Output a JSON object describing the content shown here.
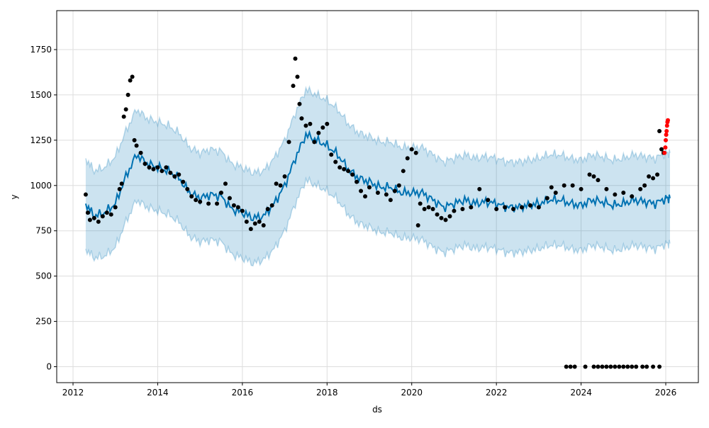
{
  "chart_data": {
    "type": "line",
    "title": "",
    "xlabel": "ds",
    "ylabel": "y",
    "xlim": [
      2011.615,
      2026.77
    ],
    "ylim": [
      -88,
      1965
    ],
    "grid": true,
    "x_ticks": [
      2012,
      2014,
      2016,
      2018,
      2020,
      2022,
      2024,
      2026
    ],
    "x_tick_labels": [
      "2012",
      "2014",
      "2016",
      "2018",
      "2020",
      "2022",
      "2024",
      "2026"
    ],
    "y_ticks": [
      0,
      250,
      500,
      750,
      1000,
      1250,
      1500,
      1750
    ],
    "y_tick_labels": [
      "0",
      "250",
      "500",
      "750",
      "1000",
      "1250",
      "1500",
      "1750"
    ],
    "colors": {
      "forecast": "#0072B2",
      "band": "#0072B2",
      "actual": "#000000",
      "future": "#ff0000",
      "grid": "#dddddd"
    },
    "forecast": {
      "x": [
        2012.3,
        2012.5,
        2012.75,
        2013.0,
        2013.25,
        2013.5,
        2013.75,
        2014.0,
        2014.25,
        2014.5,
        2014.75,
        2015.0,
        2015.25,
        2015.5,
        2015.75,
        2016.0,
        2016.25,
        2016.5,
        2016.75,
        2017.0,
        2017.25,
        2017.5,
        2017.75,
        2018.0,
        2018.25,
        2018.5,
        2018.75,
        2019.0,
        2019.25,
        2019.5,
        2019.75,
        2020.0,
        2020.25,
        2020.5,
        2020.75,
        2021.0,
        2021.25,
        2021.5,
        2021.75,
        2022.0,
        2022.25,
        2022.5,
        2022.75,
        2023.0,
        2023.25,
        2023.5,
        2023.75,
        2024.0,
        2024.25,
        2024.5,
        2024.75,
        2025.0,
        2025.25,
        2025.5,
        2025.75,
        2026.0,
        2026.1
      ],
      "yhat": [
        900,
        830,
        850,
        900,
        1050,
        1170,
        1120,
        1100,
        1080,
        1040,
        960,
        930,
        950,
        940,
        870,
        850,
        820,
        830,
        900,
        1000,
        1150,
        1280,
        1250,
        1220,
        1170,
        1090,
        1040,
        1020,
        990,
        990,
        960,
        960,
        960,
        920,
        880,
        900,
        920,
        900,
        910,
        900,
        880,
        880,
        890,
        900,
        920,
        920,
        900,
        890,
        920,
        910,
        890,
        900,
        920,
        910,
        900,
        930,
        930
      ],
      "lower": [
        650,
        600,
        610,
        660,
        800,
        920,
        880,
        860,
        840,
        800,
        720,
        690,
        700,
        690,
        620,
        600,
        570,
        590,
        650,
        750,
        900,
        1030,
        1000,
        970,
        920,
        840,
        790,
        770,
        740,
        740,
        710,
        710,
        700,
        660,
        630,
        650,
        670,
        650,
        660,
        650,
        630,
        630,
        640,
        650,
        670,
        670,
        650,
        640,
        670,
        660,
        640,
        650,
        670,
        660,
        650,
        680,
        680
      ],
      "upper": [
        1150,
        1080,
        1100,
        1160,
        1300,
        1420,
        1370,
        1350,
        1330,
        1290,
        1210,
        1180,
        1200,
        1190,
        1120,
        1100,
        1070,
        1080,
        1150,
        1250,
        1400,
        1530,
        1500,
        1470,
        1420,
        1340,
        1290,
        1270,
        1240,
        1240,
        1210,
        1210,
        1210,
        1170,
        1130,
        1150,
        1170,
        1150,
        1160,
        1150,
        1130,
        1130,
        1140,
        1150,
        1170,
        1170,
        1150,
        1140,
        1170,
        1160,
        1140,
        1150,
        1170,
        1160,
        1150,
        1180,
        1180
      ]
    },
    "actual": {
      "x": [
        2012.3,
        2012.35,
        2012.4,
        2012.5,
        2012.6,
        2012.7,
        2012.8,
        2012.9,
        2013.0,
        2013.1,
        2013.15,
        2013.2,
        2013.25,
        2013.3,
        2013.35,
        2013.4,
        2013.45,
        2013.5,
        2013.6,
        2013.7,
        2013.8,
        2013.9,
        2014.0,
        2014.1,
        2014.2,
        2014.3,
        2014.4,
        2014.5,
        2014.6,
        2014.7,
        2014.8,
        2014.9,
        2015.0,
        2015.2,
        2015.4,
        2015.5,
        2015.6,
        2015.7,
        2015.8,
        2015.9,
        2016.0,
        2016.1,
        2016.2,
        2016.3,
        2016.4,
        2016.5,
        2016.6,
        2016.7,
        2016.8,
        2016.9,
        2017.0,
        2017.1,
        2017.2,
        2017.25,
        2017.3,
        2017.35,
        2017.4,
        2017.5,
        2017.6,
        2017.7,
        2017.8,
        2017.9,
        2018.0,
        2018.1,
        2018.2,
        2018.3,
        2018.4,
        2018.5,
        2018.6,
        2018.7,
        2018.8,
        2018.9,
        2019.0,
        2019.2,
        2019.4,
        2019.5,
        2019.6,
        2019.7,
        2019.8,
        2019.9,
        2020.0,
        2020.1,
        2020.15,
        2020.2,
        2020.3,
        2020.4,
        2020.5,
        2020.6,
        2020.7,
        2020.8,
        2020.9,
        2021.0,
        2021.2,
        2021.4,
        2021.6,
        2021.8,
        2022.0,
        2022.2,
        2022.4,
        2022.6,
        2022.8,
        2023.0,
        2023.2,
        2023.3,
        2023.4,
        2023.6,
        2023.8,
        2024.0,
        2024.2,
        2024.3,
        2024.4,
        2024.6,
        2024.8,
        2025.0,
        2025.2,
        2025.4,
        2025.5,
        2025.6,
        2025.7,
        2025.8,
        2025.85,
        2025.9,
        2025.95,
        2023.65,
        2023.75,
        2023.85,
        2024.1,
        2024.3,
        2024.4,
        2024.5,
        2024.6,
        2024.7,
        2024.8,
        2024.9,
        2025.0,
        2025.1,
        2025.2,
        2025.3,
        2025.45,
        2025.55,
        2025.7,
        2025.85
      ],
      "y": [
        950,
        850,
        810,
        820,
        800,
        830,
        850,
        840,
        880,
        980,
        1010,
        1380,
        1420,
        1500,
        1580,
        1600,
        1250,
        1220,
        1180,
        1120,
        1100,
        1090,
        1100,
        1080,
        1100,
        1070,
        1050,
        1060,
        1020,
        980,
        940,
        920,
        910,
        900,
        900,
        960,
        1010,
        930,
        890,
        880,
        860,
        800,
        760,
        790,
        800,
        780,
        870,
        890,
        1010,
        1000,
        1050,
        1240,
        1550,
        1700,
        1600,
        1450,
        1370,
        1330,
        1340,
        1240,
        1290,
        1320,
        1340,
        1170,
        1130,
        1100,
        1090,
        1080,
        1060,
        1020,
        970,
        940,
        990,
        960,
        950,
        920,
        970,
        1000,
        1080,
        1150,
        1200,
        1180,
        780,
        900,
        870,
        880,
        870,
        840,
        820,
        810,
        830,
        860,
        870,
        880,
        980,
        920,
        870,
        880,
        870,
        880,
        890,
        880,
        930,
        990,
        960,
        1000,
        1000,
        980,
        1060,
        1050,
        1030,
        980,
        950,
        960,
        940,
        980,
        1000,
        1050,
        1040,
        1060,
        1300,
        1200,
        1180,
        0,
        0,
        0,
        0,
        0,
        0,
        0,
        0,
        0,
        0,
        0,
        0,
        0,
        0,
        0,
        0,
        0,
        0,
        0
      ]
    },
    "future_actual": {
      "x": [
        2025.97,
        2025.99,
        2026.0,
        2026.01,
        2026.02,
        2026.03,
        2026.04,
        2026.05
      ],
      "y": [
        1180,
        1210,
        1250,
        1280,
        1300,
        1330,
        1350,
        1360
      ]
    }
  }
}
